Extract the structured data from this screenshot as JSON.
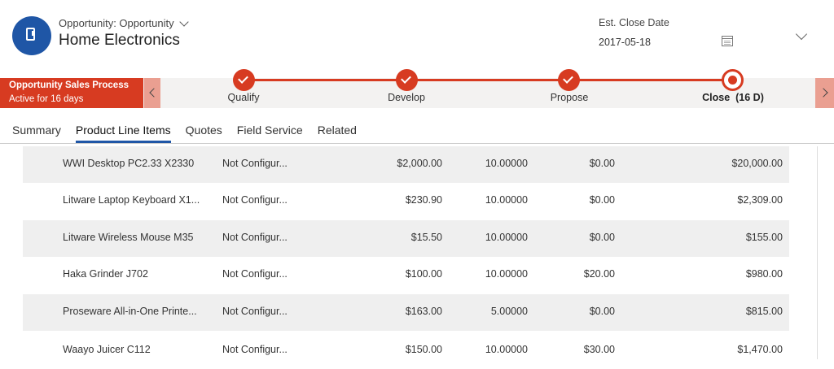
{
  "header": {
    "entity_type": "Opportunity: Opportunity",
    "record_title": "Home Electronics",
    "field_label": "Est. Close Date",
    "field_value": "2017-05-18",
    "icons": [
      "opportunity-icon",
      "chevron-down-icon",
      "calendar-icon",
      "expand-chevron-icon"
    ]
  },
  "process": {
    "name": "Opportunity Sales Process",
    "duration": "Active for 16 days",
    "stages": [
      {
        "label": "Qualify",
        "status": "completed"
      },
      {
        "label": "Develop",
        "status": "completed"
      },
      {
        "label": "Propose",
        "status": "completed"
      },
      {
        "label": "Close  (16 D)",
        "status": "active"
      }
    ],
    "accent_color": "#d73b21"
  },
  "tabs": [
    {
      "label": "Summary",
      "selected": false
    },
    {
      "label": "Product Line Items",
      "selected": true
    },
    {
      "label": "Quotes",
      "selected": false
    },
    {
      "label": "Field Service",
      "selected": false
    },
    {
      "label": "Related",
      "selected": false
    }
  ],
  "grid": {
    "rows": [
      {
        "product": "WWI Desktop PC2.33 X2330",
        "properties": "Not Configur...",
        "price": "$2,000.00",
        "quantity": "10.00000",
        "discount": "$0.00",
        "extended": "$20,000.00"
      },
      {
        "product": "Litware Laptop Keyboard X1...",
        "properties": "Not Configur...",
        "price": "$230.90",
        "quantity": "10.00000",
        "discount": "$0.00",
        "extended": "$2,309.00"
      },
      {
        "product": "Litware Wireless Mouse M35",
        "properties": "Not Configur...",
        "price": "$15.50",
        "quantity": "10.00000",
        "discount": "$0.00",
        "extended": "$155.00"
      },
      {
        "product": "Haka Grinder J702",
        "properties": "Not Configur...",
        "price": "$100.00",
        "quantity": "10.00000",
        "discount": "$20.00",
        "extended": "$980.00"
      },
      {
        "product": "Proseware All-in-One Printe...",
        "properties": "Not Configur...",
        "price": "$163.00",
        "quantity": "5.00000",
        "discount": "$0.00",
        "extended": "$815.00"
      },
      {
        "product": "Waayo Juicer C112",
        "properties": "Not Configur...",
        "price": "$150.00",
        "quantity": "10.00000",
        "discount": "$30.00",
        "extended": "$1,470.00"
      }
    ]
  }
}
